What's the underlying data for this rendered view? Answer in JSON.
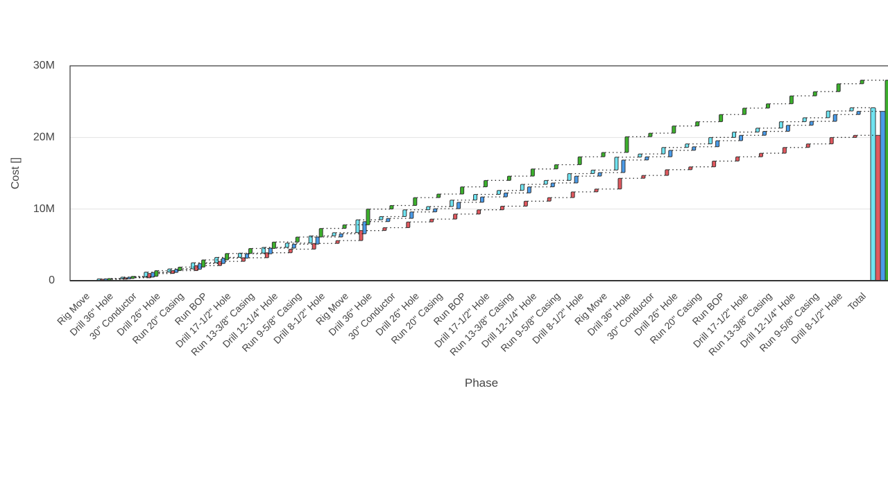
{
  "chart_data": {
    "type": "waterfall",
    "xlabel": "Phase",
    "ylabel": "Cost []",
    "categories": [
      "Rig Move",
      "Drill 36\" Hole",
      "30\" Conductor",
      "Drill 26\" Hole",
      "Run 20\" Casing",
      "Run BOP",
      "Drill 17-1/2\" Hole",
      "Run 13-3/8\" Casing",
      "Drill 12-1/4\" Hole",
      "Run 9-5/8\" Casing",
      "Drill 8-1/2\" Hole",
      "Rig Move",
      "Drill 36\" Hole",
      "30\" Conductor",
      "Drill 26\" Hole",
      "Run 20\" Casing",
      "Run BOP",
      "Drill 17-1/2\" Hole",
      "Run 13-3/8\" Casing",
      "Drill 12-1/4\" Hole",
      "Run 9-5/8\" Casing",
      "Drill 8-1/2\" Hole",
      "Rig Move",
      "Drill 36\" Hole",
      "30\" Conductor",
      "Drill 26\" Hole",
      "Run 20\" Casing",
      "Run BOP",
      "Drill 17-1/2\" Hole",
      "Run 13-3/8\" Casing",
      "Drill 12-1/4\" Hole",
      "Run 9-5/8\" Casing",
      "Drill 8-1/2\" Hole",
      "Total"
    ],
    "series": [
      {
        "color": "#6fe3f0",
        "values": [
          250000,
          250000,
          700000,
          450000,
          850000,
          750000,
          600000,
          800000,
          600000,
          1000000,
          450000,
          1800000,
          450000,
          950000,
          450000,
          900000,
          800000,
          550000,
          850000,
          550000,
          950000,
          500000,
          1800000,
          450000,
          900000,
          500000,
          900000,
          750000,
          550000,
          900000,
          550000,
          950000,
          450000,
          null
        ]
      },
      {
        "color": "#e0585e",
        "values": [
          200000,
          200000,
          600000,
          400000,
          700000,
          600000,
          500000,
          700000,
          500000,
          800000,
          400000,
          1400000,
          400000,
          800000,
          400000,
          700000,
          600000,
          500000,
          700000,
          500000,
          800000,
          400000,
          1500000,
          400000,
          800000,
          400000,
          800000,
          600000,
          500000,
          800000,
          500000,
          900000,
          300000,
          null
        ]
      },
      {
        "color": "#4a9be8",
        "values": [
          250000,
          250000,
          650000,
          450000,
          800000,
          750000,
          600000,
          800000,
          550000,
          1000000,
          450000,
          1700000,
          450000,
          900000,
          450000,
          900000,
          750000,
          550000,
          850000,
          550000,
          950000,
          500000,
          1750000,
          450000,
          900000,
          500000,
          850000,
          750000,
          550000,
          850000,
          550000,
          950000,
          450000,
          null
        ]
      },
      {
        "color": "#3cb02c",
        "values": [
          300000,
          300000,
          800000,
          500000,
          1000000,
          900000,
          700000,
          900000,
          700000,
          1200000,
          500000,
          2200000,
          500000,
          1100000,
          500000,
          1000000,
          900000,
          600000,
          1000000,
          600000,
          1100000,
          600000,
          2200000,
          500000,
          1000000,
          600000,
          1000000,
          900000,
          600000,
          1100000,
          600000,
          1100000,
          500000,
          null
        ]
      }
    ],
    "ylim": [
      0,
      30000000
    ],
    "yticks": [
      {
        "value": 0,
        "label": "0"
      },
      {
        "value": 10000000,
        "label": "10M"
      },
      {
        "value": 20000000,
        "label": "20M"
      },
      {
        "value": 30000000,
        "label": "30M"
      }
    ],
    "grid": true
  }
}
